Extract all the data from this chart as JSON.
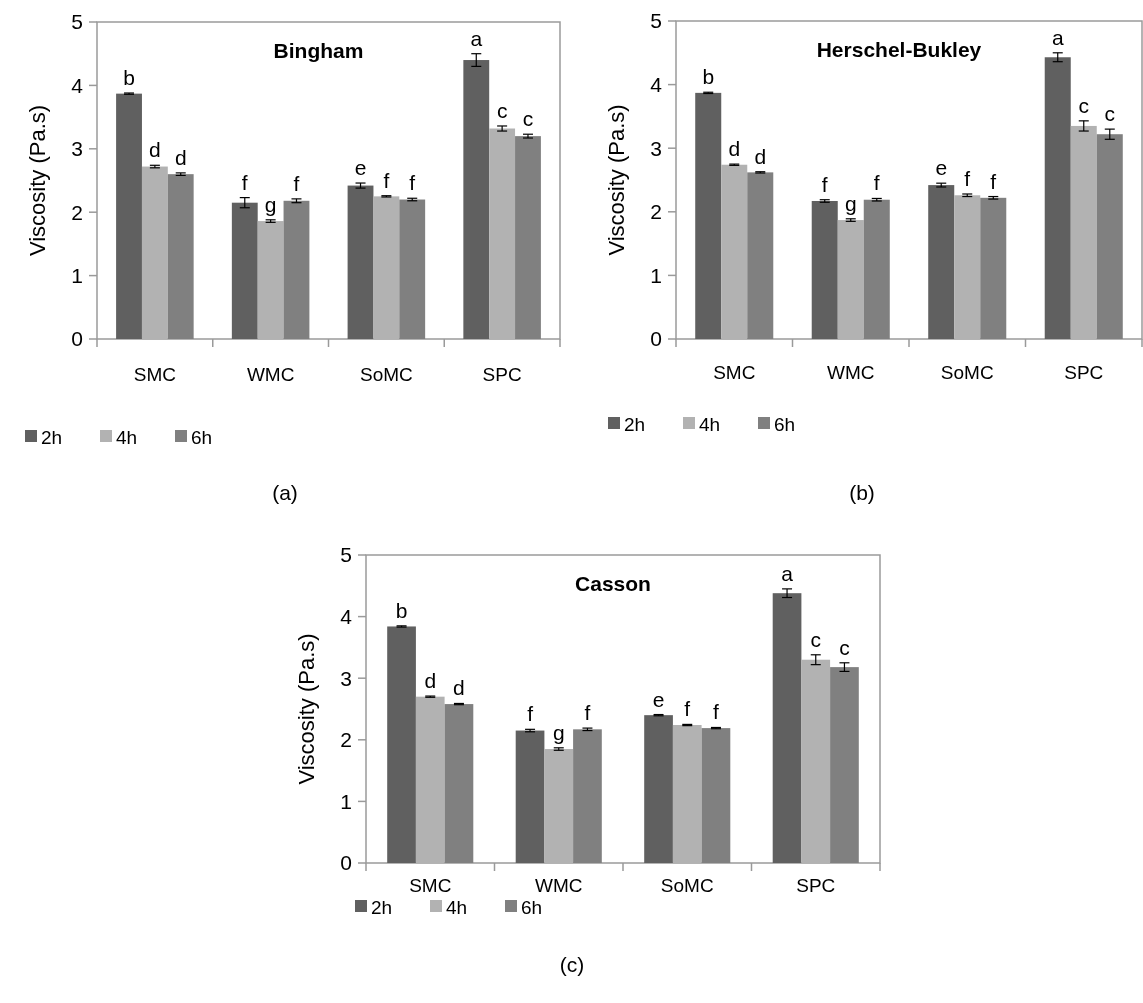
{
  "chart_data": [
    {
      "type": "bar",
      "title": "Bingham",
      "ylabel": "Viscosity (Pa.s)",
      "categories": [
        "SMC",
        "WMC",
        "SoMC",
        "SPC"
      ],
      "ylim": [
        0,
        5
      ],
      "yticks": [
        0,
        1,
        2,
        3,
        4,
        5
      ],
      "grid": false,
      "legend": "bottom left",
      "series": [
        {
          "name": "2h",
          "color": "#606060",
          "values": [
            3.87,
            2.15,
            2.42,
            4.4
          ],
          "errors": [
            0.01,
            0.08,
            0.04,
            0.1
          ]
        },
        {
          "name": "4h",
          "color": "#b2b2b2",
          "values": [
            2.72,
            1.86,
            2.25,
            3.32
          ],
          "errors": [
            0.02,
            0.02,
            0.01,
            0.04
          ]
        },
        {
          "name": "6h",
          "color": "#808080",
          "values": [
            2.6,
            2.18,
            2.2,
            3.2
          ],
          "errors": [
            0.02,
            0.03,
            0.02,
            0.03
          ]
        }
      ],
      "annotations": [
        "b",
        "d",
        "d",
        "f",
        "g",
        "f",
        "e",
        "f",
        "f",
        "a",
        "c",
        "c",
        "(a)"
      ]
    },
    {
      "type": "bar",
      "title": "Herschel-Bukley",
      "ylabel": "Viscosity (Pa.s)",
      "categories": [
        "SMC",
        "WMC",
        "SoMC",
        "SPC"
      ],
      "ylim": [
        0,
        5
      ],
      "yticks": [
        0,
        1,
        2,
        3,
        4,
        5
      ],
      "grid": false,
      "legend": "bottom left",
      "series": [
        {
          "name": "2h",
          "color": "#606060",
          "values": [
            3.87,
            2.17,
            2.42,
            4.43
          ],
          "errors": [
            0.01,
            0.02,
            0.03,
            0.07
          ]
        },
        {
          "name": "4h",
          "color": "#b2b2b2",
          "values": [
            2.74,
            1.87,
            2.26,
            3.35
          ],
          "errors": [
            0.01,
            0.02,
            0.02,
            0.08
          ]
        },
        {
          "name": "6h",
          "color": "#808080",
          "values": [
            2.62,
            2.19,
            2.22,
            3.22
          ],
          "errors": [
            0.01,
            0.02,
            0.02,
            0.08
          ]
        }
      ],
      "annotations": [
        "b",
        "d",
        "d",
        "f",
        "g",
        "f",
        "e",
        "f",
        "f",
        "a",
        "c",
        "c",
        "(b)"
      ]
    },
    {
      "type": "bar",
      "title": "Casson",
      "ylabel": "Viscosity (Pa.s)",
      "categories": [
        "SMC",
        "WMC",
        "SoMC",
        "SPC"
      ],
      "ylim": [
        0,
        5
      ],
      "yticks": [
        0,
        1,
        2,
        3,
        4,
        5
      ],
      "grid": false,
      "legend": "bottom left",
      "series": [
        {
          "name": "2h",
          "color": "#606060",
          "values": [
            3.84,
            2.15,
            2.4,
            4.38
          ],
          "errors": [
            0.01,
            0.02,
            0.01,
            0.07
          ]
        },
        {
          "name": "4h",
          "color": "#b2b2b2",
          "values": [
            2.7,
            1.85,
            2.24,
            3.3
          ],
          "errors": [
            0.01,
            0.02,
            0.01,
            0.08
          ]
        },
        {
          "name": "6h",
          "color": "#808080",
          "values": [
            2.58,
            2.17,
            2.19,
            3.18
          ],
          "errors": [
            0.01,
            0.02,
            0.01,
            0.07
          ]
        }
      ],
      "annotations": [
        "b",
        "d",
        "d",
        "f",
        "g",
        "f",
        "e",
        "f",
        "f",
        "a",
        "c",
        "c",
        "(c)"
      ]
    }
  ]
}
